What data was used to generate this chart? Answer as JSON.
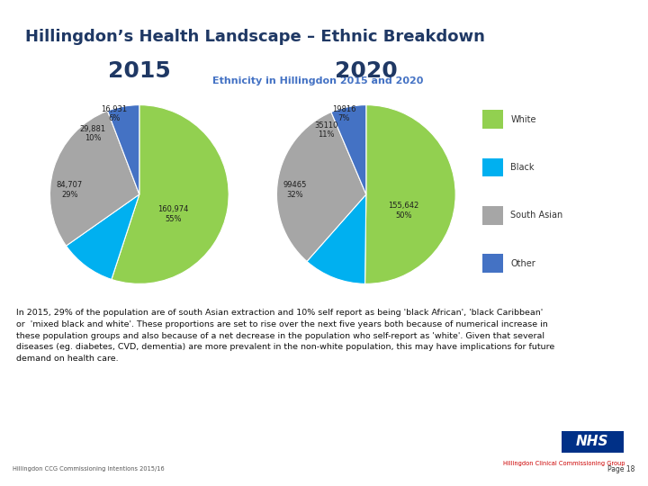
{
  "title": "Hillingdon’s Health Landscape – Ethnic Breakdown",
  "chart_title": "Ethnicity in Hillingdon 2015 and 2020",
  "title_color": "#1F3864",
  "chart_title_color": "#4472C4",
  "year_2015": "2015",
  "year_2020": "2020",
  "colors": [
    "#92D050",
    "#00B0F0",
    "#A6A6A6",
    "#4472C4"
  ],
  "legend_labels": [
    "White",
    "Black",
    "South Asian",
    "Other"
  ],
  "data_2015": {
    "values": [
      160974,
      29881,
      84707,
      16931
    ],
    "percentages": [
      "55%",
      "10%",
      "29%",
      "6%"
    ],
    "labels_str": [
      "160,974\n55%",
      "29,881\n10%",
      "84,707\n29%",
      "16,931\n6%"
    ]
  },
  "data_2020": {
    "values": [
      155642,
      35110,
      99465,
      19816
    ],
    "percentages": [
      "50%",
      "11%",
      "32%",
      "7%"
    ],
    "labels_str": [
      "155,642\n50%",
      "35110\n11%",
      "99465\n32%",
      "19816\n7%"
    ]
  },
  "body_text": "In 2015, 29% of the population are of south Asian extraction and 10% self report as being 'black African', 'black Caribbean'\nor  'mixed black and white'. These proportions are set to rise over the next five years both because of numerical increase in\nthese population groups and also because of a net decrease in the population who self-report as 'white'. Given that several\ndiseases (eg. diabetes, CVD, dementia) are more prevalent in the non-white population, this may have implications for future\ndemand on health care.",
  "footer_left": "Hillingdon CCG Commissioning Intentions 2015/16",
  "footer_right": "Page 18",
  "bg_color": "#FFFFFF",
  "header_bg": "#E8EDF5",
  "left_bar_color": "#3B5998",
  "nhs_blue": "#003087"
}
